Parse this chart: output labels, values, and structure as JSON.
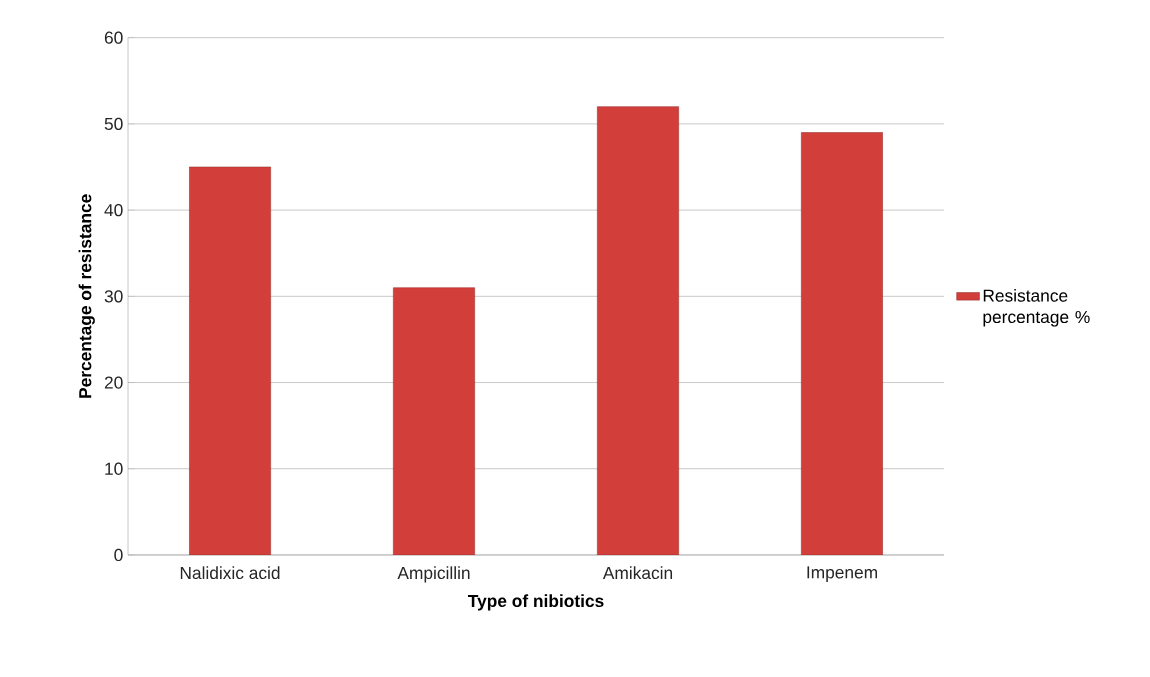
{
  "chart_data": {
    "type": "bar",
    "xlabel": "Type of nibiotics",
    "ylabel": "Percentage of resistance",
    "categories": [
      "Nalidixic acid",
      "Ampicillin",
      "Amikacin",
      "Impenem"
    ],
    "series": [
      {
        "name": "Resistance percentage %",
        "color": "#d23f3b",
        "values": [
          45,
          31,
          52,
          49
        ]
      }
    ],
    "ylim": [
      0,
      60
    ],
    "yticks": [
      0,
      10,
      20,
      30,
      40,
      50,
      60
    ],
    "grid": "y",
    "legend": "right"
  }
}
